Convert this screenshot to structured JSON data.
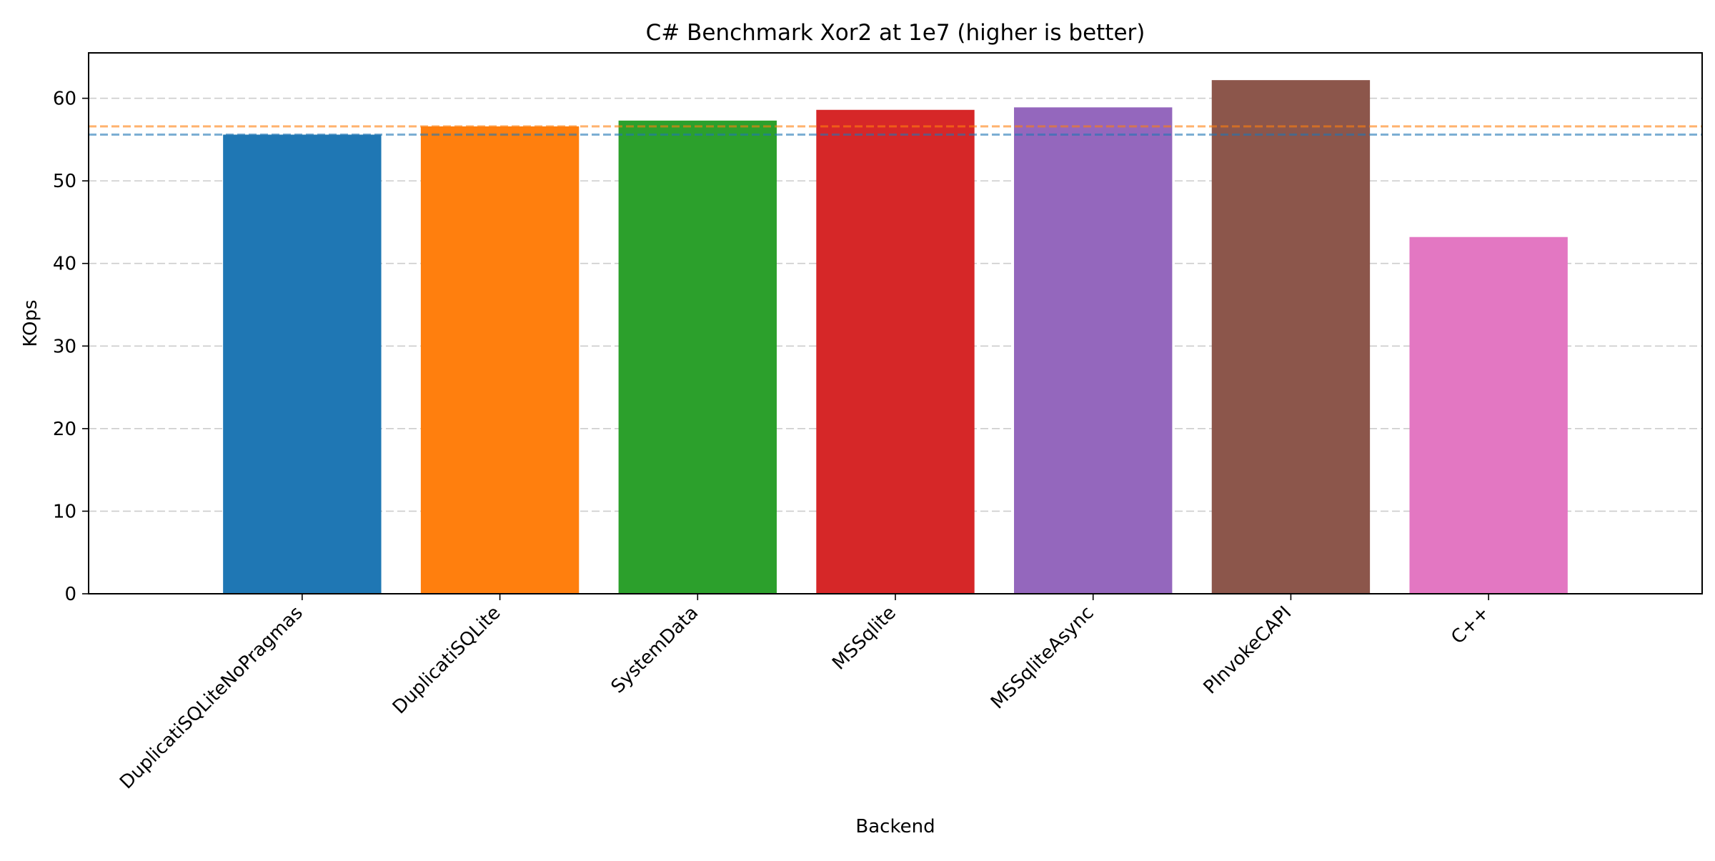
{
  "chart_data": {
    "type": "bar",
    "title": "C# Benchmark Xor2 at 1e7 (higher is better)",
    "xlabel": "Backend",
    "ylabel": "KOps",
    "categories": [
      "DuplicatiSQLiteNoPragmas",
      "DuplicatiSQLite",
      "SystemData",
      "MSSqlite",
      "MSSqliteAsync",
      "PInvokeCAPI",
      "C++"
    ],
    "values": [
      55.6,
      56.6,
      57.3,
      58.6,
      58.9,
      62.2,
      43.2
    ],
    "colors": [
      "#1f77b4",
      "#ff7f0e",
      "#2ca02c",
      "#d62728",
      "#9467bd",
      "#8c564b",
      "#e377c2"
    ],
    "ylim": [
      0,
      65.5
    ],
    "yticks": [
      0,
      10,
      20,
      30,
      40,
      50,
      60
    ],
    "grid": "y-dashed",
    "reference_lines": [
      {
        "value": 56.6,
        "color": "#ff7f0e"
      },
      {
        "value": 55.6,
        "color": "#1f77b4"
      }
    ]
  }
}
